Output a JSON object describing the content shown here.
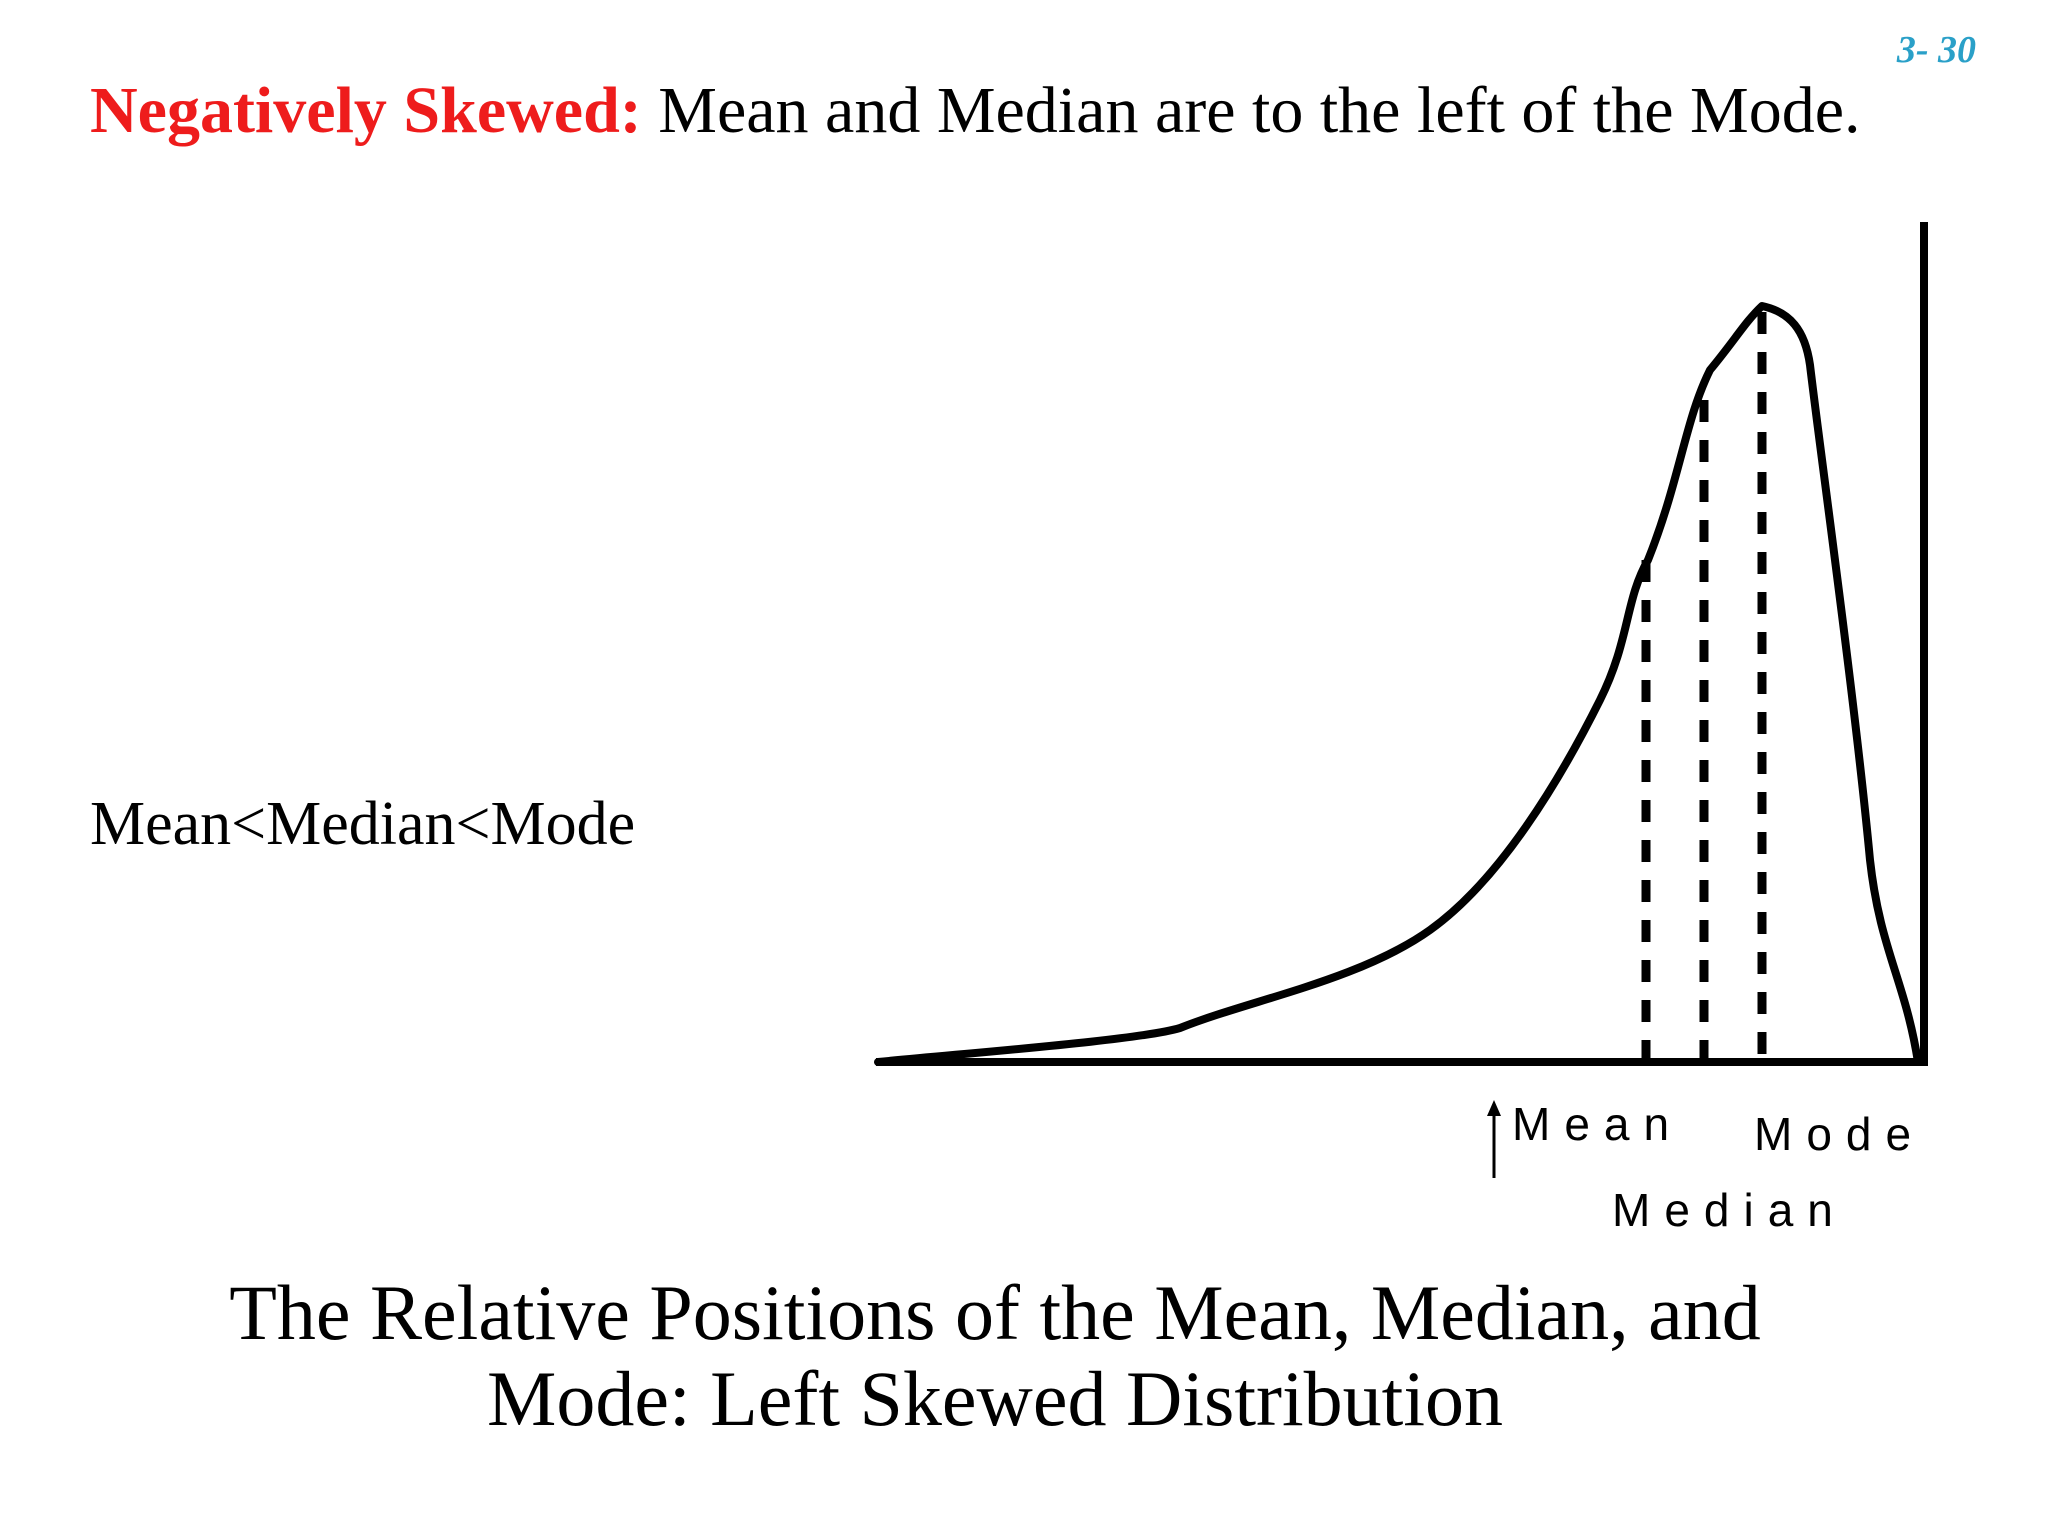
{
  "slide": {
    "number": "3- 30"
  },
  "heading": {
    "lead": "Negatively Skewed:",
    "rest": " Mean and Median are to the left of the Mode."
  },
  "relation": "Mean<Median<Mode",
  "diagram": {
    "labels": {
      "mean": "Mean",
      "median": "Median",
      "mode": "Mode"
    },
    "colors": {
      "curve": "#000000",
      "axes": "#000000",
      "markers": "#000000"
    }
  },
  "caption": {
    "line1": "The Relative Positions of the Mean, Median, and",
    "line2": "Mode:  Left Skewed Distribution"
  },
  "colors": {
    "lead": "#ee1c1c",
    "slide_number": "#2aa0c8"
  }
}
